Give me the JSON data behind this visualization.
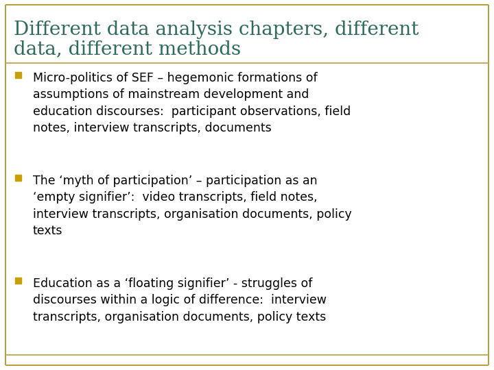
{
  "title_line1": "Different data analysis chapters, different",
  "title_line2": "data, different methods",
  "title_color": "#2E6B5E",
  "background_color": "#FFFFFF",
  "border_color": "#B8A040",
  "bullet_color": "#C8A000",
  "text_color": "#000000",
  "bullet_points": [
    "Micro-politics of SEF – hegemonic formations of\nassumptions of mainstream development and\neducation discourses:  participant observations, field\nnotes, interview transcripts, documents",
    "The ‘myth of participation’ – participation as an\n‘empty signifier’:  video transcripts, field notes,\ninterview transcripts, organisation documents, policy\ntexts",
    "Education as a ‘floating signifier’ - struggles of\ndiscourses within a logic of difference:  interview\ntranscripts, organisation documents, policy texts"
  ],
  "title_fontsize": 20,
  "bullet_fontsize": 12.5,
  "figsize": [
    7.2,
    5.4
  ],
  "dpi": 100
}
